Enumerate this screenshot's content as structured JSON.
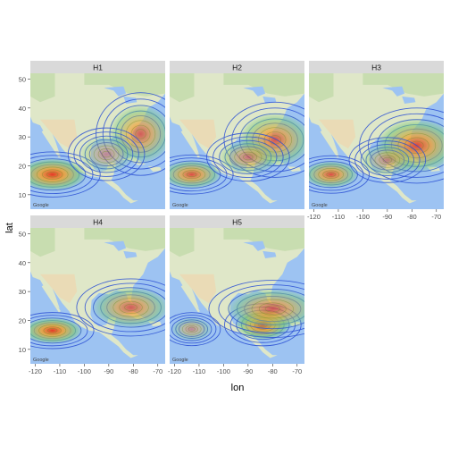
{
  "chart_data": {
    "type": "heatmap",
    "subtype": "faceted 2D density contours over map",
    "xlabel": "lon",
    "ylabel": "lat",
    "xlim": [
      -122,
      -67
    ],
    "ylim": [
      5,
      52
    ],
    "x_ticks": [
      -120,
      -110,
      -100,
      -90,
      -80,
      -70
    ],
    "y_ticks": [
      10,
      20,
      30,
      40,
      50
    ],
    "facet_strip_color": "#d9d9d9",
    "panel_background": "#ebebeb",
    "contour_color": "#2a4fd4",
    "fill_gradient": [
      "#7fc97f",
      "#f0a030",
      "#e8321c"
    ],
    "facets": [
      {
        "label": "H1",
        "clusters": [
          {
            "lon": -113,
            "lat": 17,
            "sx": 7.5,
            "sy": 3.0,
            "peak": 1.0
          },
          {
            "lon": -77,
            "lat": 31,
            "sx": 7.0,
            "sy": 5.5,
            "peak": 0.75
          },
          {
            "lon": -91,
            "lat": 24,
            "sx": 6.0,
            "sy": 3.5,
            "peak": 0.45
          }
        ]
      },
      {
        "label": "H2",
        "clusters": [
          {
            "lon": -113,
            "lat": 17,
            "sx": 6.5,
            "sy": 2.6,
            "peak": 0.85
          },
          {
            "lon": -79,
            "lat": 29,
            "sx": 8.0,
            "sy": 5.0,
            "peak": 0.8
          },
          {
            "lon": -90,
            "lat": 23,
            "sx": 6.5,
            "sy": 3.2,
            "peak": 0.6
          }
        ]
      },
      {
        "label": "H3",
        "clusters": [
          {
            "lon": -113,
            "lat": 17,
            "sx": 6.0,
            "sy": 2.5,
            "peak": 0.85
          },
          {
            "lon": -78,
            "lat": 27,
            "sx": 9.0,
            "sy": 5.0,
            "peak": 0.9
          },
          {
            "lon": -90,
            "lat": 22,
            "sx": 6.0,
            "sy": 3.0,
            "peak": 0.5
          }
        ]
      },
      {
        "label": "H4",
        "clusters": [
          {
            "lon": -113,
            "lat": 16.5,
            "sx": 6.5,
            "sy": 2.4,
            "peak": 1.0
          },
          {
            "lon": -81,
            "lat": 24.5,
            "sx": 8.5,
            "sy": 3.8,
            "peak": 0.75
          }
        ]
      },
      {
        "label": "H5",
        "clusters": [
          {
            "lon": -113,
            "lat": 17,
            "sx": 4.5,
            "sy": 2.2,
            "peak": 0.4
          },
          {
            "lon": -84,
            "lat": 18.5,
            "sx": 6.0,
            "sy": 2.8,
            "peak": 1.0
          },
          {
            "lon": -80,
            "lat": 24,
            "sx": 10.0,
            "sy": 3.8,
            "peak": 0.75
          }
        ]
      }
    ],
    "map_watermark": "Google"
  }
}
